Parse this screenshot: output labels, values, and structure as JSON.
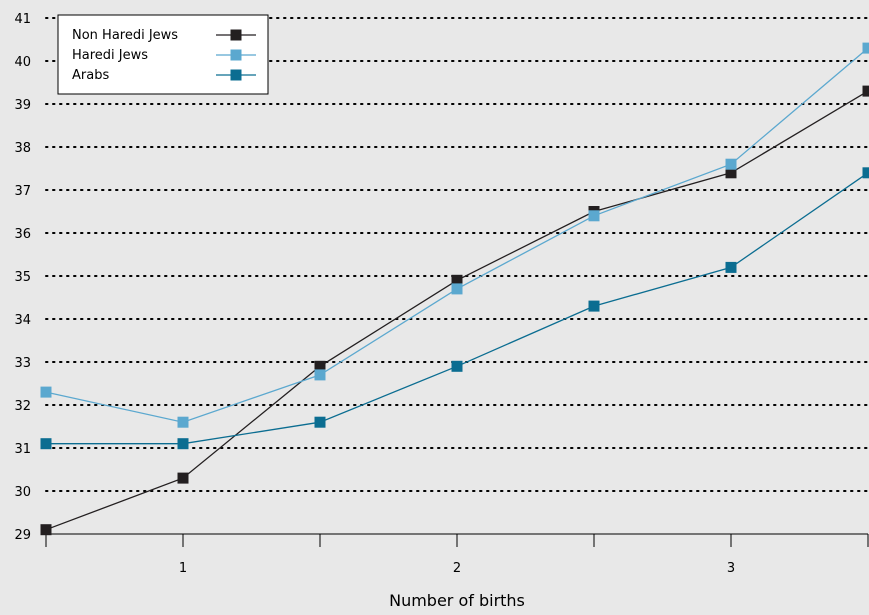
{
  "chart_data": {
    "type": "line",
    "title": "",
    "xlabel": "Number of births",
    "ylabel": "",
    "ylim": [
      29,
      41
    ],
    "yticks": [
      "29",
      "30",
      "31",
      "32",
      "33",
      "34",
      "35",
      "36",
      "37",
      "38",
      "39",
      "40",
      "41"
    ],
    "xtick_labels": [
      "1",
      "2",
      "3"
    ],
    "x": [
      0.5,
      1,
      1.5,
      2,
      2.5,
      3,
      3.5
    ],
    "grid": true,
    "legend_position": "top-left",
    "series": [
      {
        "name": "Non Haredi Jews",
        "color": "#231f20",
        "values": [
          29.1,
          30.3,
          32.9,
          34.9,
          36.5,
          37.4,
          39.3
        ]
      },
      {
        "name": "Haredi Jews",
        "color": "#5ba8cf",
        "values": [
          32.3,
          31.6,
          32.7,
          34.7,
          36.4,
          37.6,
          40.3
        ]
      },
      {
        "name": "Arabs",
        "color": "#0b6d91",
        "values": [
          31.1,
          31.1,
          31.6,
          32.9,
          34.3,
          35.2,
          37.4
        ]
      }
    ]
  }
}
